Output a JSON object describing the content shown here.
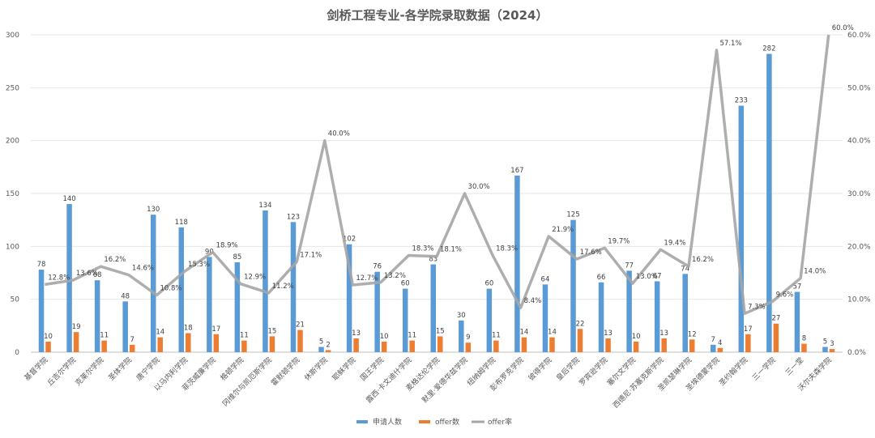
{
  "chart_data": {
    "type": "bar",
    "title": "剑桥工程专业-各学院录取数据（2024）",
    "categories": [
      "基督学院",
      "丘吉尔学院",
      "克莱尔学院",
      "圣体学院",
      "唐宁学院",
      "以马内利学院",
      "菲茨威廉学院",
      "格顿学院",
      "冈维尔与凯厄斯学院",
      "霍默顿学院",
      "休斯学院",
      "耶稣学院",
      "国王学院",
      "露西·卡文迪什学院",
      "麦格达伦学院",
      "默里·爱德华兹学院",
      "纽纳姆学院",
      "彭布罗克学院",
      "彼得学院",
      "皇后学院",
      "罗宾逊学院",
      "塞尔文学院",
      "西德尼·苏塞克斯学院",
      "圣凯瑟琳学院",
      "圣埃德蒙学院",
      "圣约翰学院",
      "三一学院",
      "三一堂",
      "沃尔夫森学院"
    ],
    "series": [
      {
        "name": "申请人数",
        "axis": "left",
        "color": "#5b9bd5",
        "values": [
          78,
          140,
          68,
          48,
          130,
          118,
          90,
          85,
          134,
          123,
          5,
          102,
          76,
          60,
          83,
          30,
          60,
          167,
          64,
          125,
          66,
          77,
          67,
          74,
          7,
          233,
          282,
          57,
          5
        ]
      },
      {
        "name": "offer数",
        "axis": "left",
        "color": "#ed7d31",
        "values": [
          10,
          19,
          11,
          7,
          14,
          18,
          17,
          11,
          15,
          21,
          2,
          13,
          10,
          11,
          15,
          9,
          11,
          14,
          14,
          22,
          13,
          10,
          13,
          12,
          4,
          17,
          27,
          8,
          3
        ]
      },
      {
        "name": "offer率",
        "axis": "right",
        "color": "#a5a5a5",
        "values": [
          12.8,
          13.6,
          16.2,
          14.6,
          10.8,
          15.3,
          18.9,
          12.9,
          11.2,
          17.1,
          40.0,
          12.7,
          13.2,
          18.3,
          18.1,
          30.0,
          18.3,
          8.4,
          21.9,
          17.6,
          19.7,
          13.0,
          19.4,
          16.2,
          57.1,
          7.3,
          9.6,
          14.0,
          60.0
        ],
        "labels": [
          "12.8%",
          "13.6%",
          "16.2%",
          "14.6%",
          "10.8%",
          "15.3%",
          "18.9%",
          "12.9%",
          "11.2%",
          "17.1%",
          "40.0%",
          "12.7%",
          "13.2%",
          "18.3%",
          "18.1%",
          "30.0%",
          "18.3%",
          "8.4%",
          "21.9%",
          "17.6%",
          "19.7%",
          "13.0%",
          "19.4%",
          "16.2%",
          "57.1%",
          "7.3%",
          "9.6%",
          "14.0%",
          "60.0%"
        ]
      }
    ],
    "bar_labels": {
      "申请人数": [
        "78",
        "140",
        "68",
        "48",
        "130",
        "118",
        "90",
        "85",
        "134",
        "123",
        "5",
        "102",
        "76",
        "60",
        "83",
        "30",
        "60",
        "167",
        "64",
        "125",
        "66",
        "77",
        "67",
        "74",
        "7",
        "233",
        "282",
        "57",
        "5"
      ],
      "offer数": [
        "10",
        "19",
        "11",
        "7",
        "14",
        "18",
        "17",
        "11",
        "15",
        "21",
        "2",
        "13",
        "10",
        "11",
        "15",
        "9",
        "11",
        "14",
        "14",
        "22",
        "13",
        "10",
        "13",
        "12",
        "4",
        "17",
        "27",
        "8",
        "3"
      ]
    },
    "ylim": [
      0,
      300
    ],
    "yticks": [
      "0",
      "50",
      "100",
      "150",
      "200",
      "250",
      "300"
    ],
    "y2lim": [
      0,
      60
    ],
    "y2ticks": [
      "0.0%",
      "10.0%",
      "20.0%",
      "30.0%",
      "40.0%",
      "50.0%",
      "60.0%"
    ],
    "grid": true,
    "legend_position": "bottom",
    "legend": [
      "申请人数",
      "offer数",
      "offer率"
    ]
  }
}
